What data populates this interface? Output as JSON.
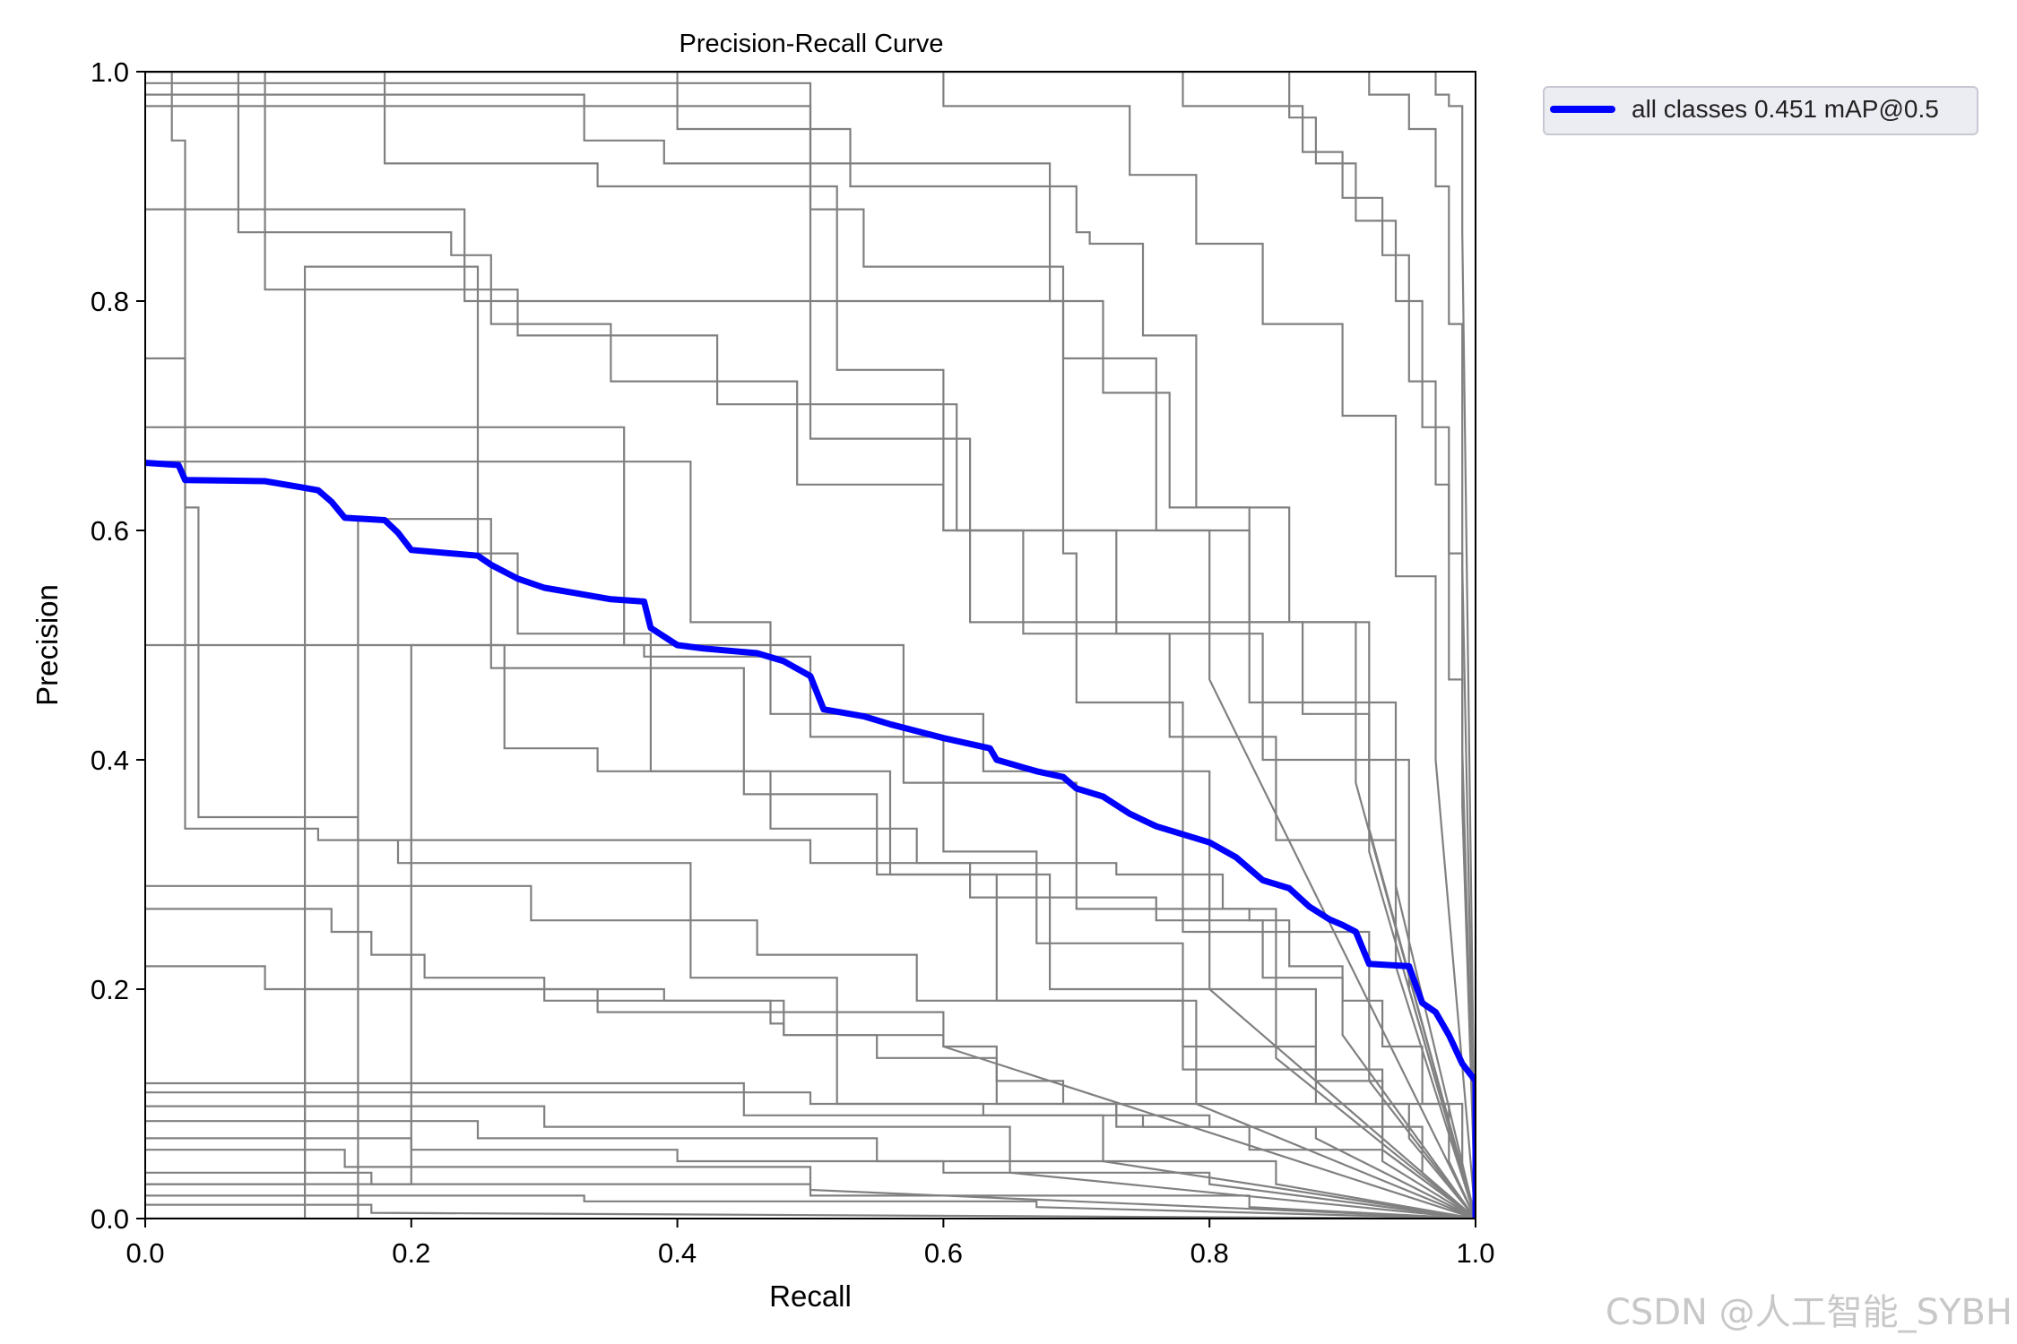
{
  "chart_data": {
    "type": "line",
    "title": "Precision-Recall Curve",
    "xlabel": "Recall",
    "ylabel": "Precision",
    "xlim": [
      0,
      1
    ],
    "ylim": [
      0,
      1
    ],
    "xticks": [
      "0.0",
      "0.2",
      "0.4",
      "0.6",
      "0.8",
      "1.0"
    ],
    "yticks": [
      "0.0",
      "0.2",
      "0.4",
      "0.6",
      "0.8",
      "1.0"
    ],
    "grid": false,
    "legend_position": "outside-top-right",
    "colors": {
      "class_curves": "#808080",
      "all_classes": "#0000ff",
      "axes": "#000000"
    },
    "series": [
      {
        "name": "all classes 0.451 mAP@0.5",
        "x": [
          0.0,
          0.025,
          0.03,
          0.09,
          0.12,
          0.13,
          0.14,
          0.15,
          0.18,
          0.19,
          0.2,
          0.25,
          0.26,
          0.28,
          0.3,
          0.32,
          0.35,
          0.375,
          0.38,
          0.4,
          0.42,
          0.46,
          0.48,
          0.5,
          0.51,
          0.54,
          0.56,
          0.6,
          0.635,
          0.64,
          0.67,
          0.69,
          0.7,
          0.72,
          0.74,
          0.76,
          0.8,
          0.82,
          0.84,
          0.86,
          0.875,
          0.89,
          0.9,
          0.91,
          0.92,
          0.95,
          0.96,
          0.97,
          0.98,
          0.99,
          1.0,
          1.0
        ],
        "y": [
          0.659,
          0.657,
          0.644,
          0.643,
          0.637,
          0.635,
          0.625,
          0.611,
          0.609,
          0.598,
          0.583,
          0.578,
          0.57,
          0.558,
          0.55,
          0.546,
          0.54,
          0.538,
          0.515,
          0.5,
          0.497,
          0.493,
          0.486,
          0.473,
          0.444,
          0.438,
          0.431,
          0.419,
          0.41,
          0.4,
          0.39,
          0.385,
          0.375,
          0.368,
          0.353,
          0.342,
          0.328,
          0.315,
          0.295,
          0.288,
          0.272,
          0.261,
          0.256,
          0.25,
          0.222,
          0.22,
          0.188,
          0.18,
          0.16,
          0.135,
          0.12,
          0.0
        ]
      }
    ],
    "class_curves": [
      {
        "x": [
          0.0,
          0.02,
          0.02,
          0.03,
          0.03,
          0.13,
          0.13,
          0.5,
          0.5,
          0.73,
          0.73,
          0.81,
          0.81,
          0.83,
          0.83,
          0.86,
          0.86,
          0.9,
          0.9,
          0.93,
          0.93,
          0.96,
          0.96,
          0.99,
          0.99,
          1.0
        ],
        "y": [
          1.0,
          1.0,
          0.94,
          0.94,
          0.34,
          0.34,
          0.33,
          0.33,
          0.31,
          0.31,
          0.3,
          0.3,
          0.27,
          0.27,
          0.26,
          0.26,
          0.22,
          0.22,
          0.19,
          0.19,
          0.15,
          0.15,
          0.1,
          0.1,
          0.04,
          0.0
        ]
      },
      {
        "x": [
          0.0,
          0.03,
          0.03,
          0.04,
          0.04,
          0.16,
          0.16,
          0.19,
          0.19,
          0.41,
          0.41,
          0.52,
          0.52,
          0.95,
          0.95,
          1.0
        ],
        "y": [
          0.75,
          0.75,
          0.62,
          0.62,
          0.35,
          0.35,
          0.33,
          0.33,
          0.31,
          0.31,
          0.21,
          0.21,
          0.1,
          0.1,
          0.07,
          0.0
        ]
      },
      {
        "x": [
          0.0,
          0.33,
          0.33,
          0.39,
          0.39,
          0.5,
          0.5,
          0.69,
          0.69,
          0.7,
          0.7,
          0.78,
          0.78,
          0.92,
          0.92,
          1.0
        ],
        "y": [
          0.98,
          0.98,
          0.94,
          0.94,
          0.92,
          0.92,
          0.8,
          0.8,
          0.58,
          0.58,
          0.45,
          0.45,
          0.25,
          0.25,
          0.12,
          0.0
        ]
      },
      {
        "x": [
          0.0,
          0.375,
          0.375,
          0.5,
          0.5,
          0.6,
          0.6,
          0.67,
          0.67,
          0.78,
          0.78,
          0.93,
          0.93,
          1.0
        ],
        "y": [
          0.5,
          0.5,
          0.49,
          0.49,
          0.42,
          0.42,
          0.32,
          0.32,
          0.24,
          0.24,
          0.13,
          0.13,
          0.06,
          0.0
        ]
      },
      {
        "x": [
          0.0,
          0.14,
          0.14,
          0.17,
          0.17,
          0.21,
          0.21,
          0.3,
          0.3,
          0.47,
          0.47,
          0.48,
          0.48,
          0.6,
          0.6,
          0.64,
          0.64,
          0.69,
          0.69,
          0.73,
          0.73,
          0.83,
          0.83,
          0.93,
          0.93,
          1.0
        ],
        "y": [
          0.27,
          0.27,
          0.25,
          0.25,
          0.23,
          0.23,
          0.21,
          0.21,
          0.19,
          0.19,
          0.17,
          0.17,
          0.16,
          0.16,
          0.15,
          0.15,
          0.12,
          0.12,
          0.1,
          0.1,
          0.08,
          0.08,
          0.06,
          0.06,
          0.05,
          0.0
        ]
      },
      {
        "x": [
          0.0,
          0.5,
          0.5,
          0.54,
          0.54,
          0.69,
          0.69,
          0.76,
          0.76,
          0.83,
          0.83,
          0.87,
          0.87,
          0.92,
          0.92,
          1.0
        ],
        "y": [
          0.99,
          0.99,
          0.88,
          0.88,
          0.83,
          0.83,
          0.75,
          0.75,
          0.6,
          0.6,
          0.52,
          0.52,
          0.44,
          0.44,
          0.34,
          0.0
        ]
      },
      {
        "x": [
          0.0,
          0.2,
          0.2,
          0.27,
          0.27,
          0.34,
          0.34,
          0.47,
          0.47,
          0.58,
          0.58,
          0.62,
          0.62,
          0.76,
          0.76,
          0.84,
          0.84,
          0.9,
          0.9,
          1.0
        ],
        "y": [
          0.03,
          0.03,
          0.5,
          0.5,
          0.41,
          0.41,
          0.39,
          0.39,
          0.34,
          0.34,
          0.31,
          0.31,
          0.28,
          0.28,
          0.26,
          0.26,
          0.21,
          0.21,
          0.16,
          0.0
        ]
      },
      {
        "x": [
          0.0,
          0.12,
          0.12,
          0.39,
          0.39,
          0.48,
          0.48,
          0.55,
          0.55,
          0.64,
          0.64,
          0.73,
          0.73,
          0.8,
          0.8,
          0.96,
          0.96,
          1.0
        ],
        "y": [
          0.03,
          0.03,
          0.2,
          0.2,
          0.19,
          0.19,
          0.16,
          0.16,
          0.14,
          0.14,
          0.1,
          0.1,
          0.09,
          0.09,
          0.08,
          0.08,
          0.04,
          0.0
        ]
      },
      {
        "x": [
          0.0,
          0.12,
          0.12,
          0.25,
          0.25,
          0.28,
          0.28,
          0.38,
          0.38,
          0.56,
          0.56,
          0.64,
          0.64,
          0.78,
          0.78,
          0.88,
          0.88,
          0.98,
          0.98,
          1.0
        ],
        "y": [
          0.0,
          0.0,
          0.83,
          0.83,
          0.58,
          0.58,
          0.51,
          0.51,
          0.39,
          0.39,
          0.3,
          0.3,
          0.19,
          0.19,
          0.15,
          0.15,
          0.1,
          0.1,
          0.05,
          0.0
        ]
      },
      {
        "x": [
          0.0,
          0.16,
          0.16,
          0.26,
          0.26,
          0.45,
          0.45,
          0.55,
          0.55,
          0.68,
          0.68,
          0.88,
          0.88,
          0.93,
          0.93,
          1.0
        ],
        "y": [
          0.0,
          0.0,
          0.61,
          0.61,
          0.48,
          0.48,
          0.37,
          0.37,
          0.3,
          0.3,
          0.2,
          0.2,
          0.12,
          0.12,
          0.06,
          0.0
        ]
      },
      {
        "x": [
          0.0,
          0.07,
          0.07,
          0.23,
          0.23,
          0.26,
          0.26,
          0.35,
          0.35,
          0.49,
          0.49,
          0.6,
          0.6,
          0.73,
          0.73,
          0.84,
          0.84,
          0.95,
          0.95,
          1.0
        ],
        "y": [
          1.0,
          1.0,
          0.86,
          0.86,
          0.84,
          0.84,
          0.78,
          0.78,
          0.73,
          0.73,
          0.64,
          0.64,
          0.6,
          0.6,
          0.51,
          0.51,
          0.4,
          0.4,
          0.2,
          0.0
        ]
      },
      {
        "x": [
          0.0,
          0.18,
          0.18,
          0.34,
          0.34,
          0.52,
          0.52,
          0.6,
          0.6,
          0.66,
          0.66,
          0.77,
          0.77,
          0.85,
          0.85,
          0.94,
          0.94,
          1.0
        ],
        "y": [
          1.0,
          1.0,
          0.92,
          0.92,
          0.9,
          0.9,
          0.74,
          0.74,
          0.6,
          0.6,
          0.51,
          0.51,
          0.42,
          0.42,
          0.33,
          0.33,
          0.22,
          0.0
        ]
      },
      {
        "x": [
          0.0,
          0.4,
          0.4,
          0.49,
          0.49,
          0.53,
          0.53,
          0.68,
          0.68,
          0.72,
          0.72,
          0.77,
          0.77,
          0.83,
          0.83,
          0.94,
          0.94,
          1.0
        ],
        "y": [
          1.0,
          1.0,
          0.95,
          0.95,
          0.95,
          0.95,
          0.9,
          0.9,
          0.8,
          0.8,
          0.72,
          0.72,
          0.62,
          0.62,
          0.45,
          0.45,
          0.29,
          0.0
        ]
      },
      {
        "x": [
          0.0,
          0.5,
          0.5,
          0.68,
          0.68,
          0.7,
          0.7,
          0.71,
          0.71,
          0.75,
          0.75,
          0.79,
          0.79,
          0.86,
          0.86,
          0.92,
          0.92,
          1.0
        ],
        "y": [
          0.97,
          0.97,
          0.92,
          0.92,
          0.9,
          0.9,
          0.86,
          0.86,
          0.85,
          0.85,
          0.77,
          0.77,
          0.62,
          0.62,
          0.52,
          0.52,
          0.32,
          0.0
        ]
      },
      {
        "x": [
          0.0,
          0.6,
          0.6,
          0.74,
          0.74,
          0.79,
          0.79,
          0.84,
          0.84,
          0.9,
          0.9,
          0.94,
          0.94,
          0.97,
          0.97,
          1.0
        ],
        "y": [
          1.0,
          1.0,
          0.97,
          0.97,
          0.91,
          0.91,
          0.85,
          0.85,
          0.78,
          0.78,
          0.7,
          0.7,
          0.56,
          0.56,
          0.4,
          0.0
        ]
      },
      {
        "x": [
          0.0,
          0.78,
          0.78,
          0.87,
          0.87,
          0.9,
          0.9,
          0.93,
          0.93,
          0.95,
          0.95,
          0.97,
          0.97,
          0.98,
          0.98,
          0.99,
          0.99,
          1.0
        ],
        "y": [
          1.0,
          1.0,
          0.97,
          0.97,
          0.93,
          0.93,
          0.89,
          0.89,
          0.84,
          0.84,
          0.73,
          0.73,
          0.64,
          0.64,
          0.47,
          0.47,
          0.36,
          0.0
        ]
      },
      {
        "x": [
          0.0,
          0.86,
          0.86,
          0.88,
          0.88,
          0.91,
          0.91,
          0.94,
          0.94,
          0.96,
          0.96,
          0.98,
          0.98,
          0.99,
          0.99,
          1.0
        ],
        "y": [
          1.0,
          1.0,
          0.96,
          0.96,
          0.92,
          0.92,
          0.87,
          0.87,
          0.8,
          0.8,
          0.69,
          0.69,
          0.58,
          0.58,
          0.41,
          0.0
        ]
      },
      {
        "x": [
          0.0,
          0.92,
          0.92,
          0.95,
          0.95,
          0.97,
          0.97,
          0.98,
          0.98,
          0.99,
          0.99,
          1.0
        ],
        "y": [
          1.0,
          1.0,
          0.98,
          0.98,
          0.95,
          0.95,
          0.9,
          0.9,
          0.78,
          0.78,
          0.57,
          0.0
        ]
      },
      {
        "x": [
          0.0,
          0.97,
          0.97,
          0.98,
          0.98,
          0.99,
          0.99,
          1.0
        ],
        "y": [
          1.0,
          1.0,
          0.98,
          0.98,
          0.97,
          0.97,
          0.86,
          0.0
        ]
      },
      {
        "x": [
          0.0,
          0.5,
          0.5,
          0.63,
          0.63,
          0.75,
          0.75,
          0.88,
          0.88,
          1.0
        ],
        "y": [
          0.11,
          0.11,
          0.1,
          0.1,
          0.09,
          0.09,
          0.08,
          0.08,
          0.07,
          0.0
        ]
      },
      {
        "x": [
          0.0,
          0.2,
          0.2,
          0.4,
          0.4,
          0.6,
          0.6,
          0.8,
          0.8,
          1.0
        ],
        "y": [
          0.07,
          0.07,
          0.06,
          0.06,
          0.05,
          0.05,
          0.04,
          0.04,
          0.03,
          0.0
        ]
      },
      {
        "x": [
          0.0,
          0.17,
          0.17,
          0.5,
          0.5,
          0.83,
          0.83,
          1.0
        ],
        "y": [
          0.04,
          0.04,
          0.03,
          0.03,
          0.02,
          0.02,
          0.01,
          0.0
        ]
      },
      {
        "x": [
          0.0,
          0.33,
          0.33,
          0.67,
          0.67,
          1.0
        ],
        "y": [
          0.02,
          0.02,
          0.015,
          0.015,
          0.01,
          0.0
        ]
      },
      {
        "x": [
          0.0,
          0.17,
          0.17,
          1.0
        ],
        "y": [
          0.012,
          0.012,
          0.005,
          0.0
        ]
      },
      {
        "x": [
          0.0,
          0.45,
          0.45,
          0.72,
          0.72,
          1.0
        ],
        "y": [
          0.118,
          0.118,
          0.09,
          0.09,
          0.05,
          0.0
        ]
      },
      {
        "x": [
          0.0,
          0.3,
          0.3,
          0.65,
          0.65,
          1.0
        ],
        "y": [
          0.098,
          0.098,
          0.08,
          0.08,
          0.04,
          0.0
        ]
      },
      {
        "x": [
          0.0,
          0.25,
          0.25,
          0.55,
          0.55,
          0.85,
          0.85,
          1.0
        ],
        "y": [
          0.085,
          0.085,
          0.07,
          0.07,
          0.05,
          0.05,
          0.03,
          0.0
        ]
      },
      {
        "x": [
          0.0,
          0.15,
          0.15,
          0.5,
          0.5,
          1.0
        ],
        "y": [
          0.06,
          0.06,
          0.045,
          0.045,
          0.025,
          0.0
        ]
      },
      {
        "x": [
          0.0,
          0.09,
          0.09,
          0.34,
          0.34,
          0.6,
          0.6,
          1.0
        ],
        "y": [
          0.22,
          0.22,
          0.2,
          0.2,
          0.18,
          0.18,
          0.15,
          0.0
        ]
      },
      {
        "x": [
          0.0,
          0.29,
          0.29,
          0.46,
          0.46,
          0.58,
          0.58,
          0.79,
          0.79,
          1.0
        ],
        "y": [
          0.29,
          0.29,
          0.26,
          0.26,
          0.23,
          0.23,
          0.19,
          0.19,
          0.1,
          0.0
        ]
      },
      {
        "x": [
          0.0,
          0.36,
          0.36,
          0.57,
          0.57,
          0.7,
          0.7,
          0.85,
          0.85,
          1.0
        ],
        "y": [
          0.69,
          0.69,
          0.5,
          0.5,
          0.38,
          0.38,
          0.27,
          0.27,
          0.14,
          0.0
        ]
      },
      {
        "x": [
          0.0,
          0.41,
          0.41,
          0.47,
          0.47,
          0.63,
          0.63,
          0.8,
          0.8,
          1.0
        ],
        "y": [
          0.66,
          0.66,
          0.52,
          0.52,
          0.44,
          0.44,
          0.39,
          0.39,
          0.2,
          0.0
        ]
      },
      {
        "x": [
          0.0,
          0.24,
          0.24,
          0.5,
          0.5,
          0.62,
          0.62,
          0.91,
          0.91,
          1.0
        ],
        "y": [
          0.88,
          0.88,
          0.8,
          0.8,
          0.68,
          0.68,
          0.52,
          0.52,
          0.38,
          0.0
        ]
      },
      {
        "x": [
          0.0,
          0.09,
          0.09,
          0.28,
          0.28,
          0.43,
          0.43,
          0.61,
          0.61,
          0.8,
          0.8,
          1.0
        ],
        "y": [
          1.0,
          1.0,
          0.81,
          0.81,
          0.77,
          0.77,
          0.71,
          0.71,
          0.6,
          0.6,
          0.47,
          0.0
        ]
      }
    ],
    "watermark": "CSDN @人工智能_SYBH"
  }
}
